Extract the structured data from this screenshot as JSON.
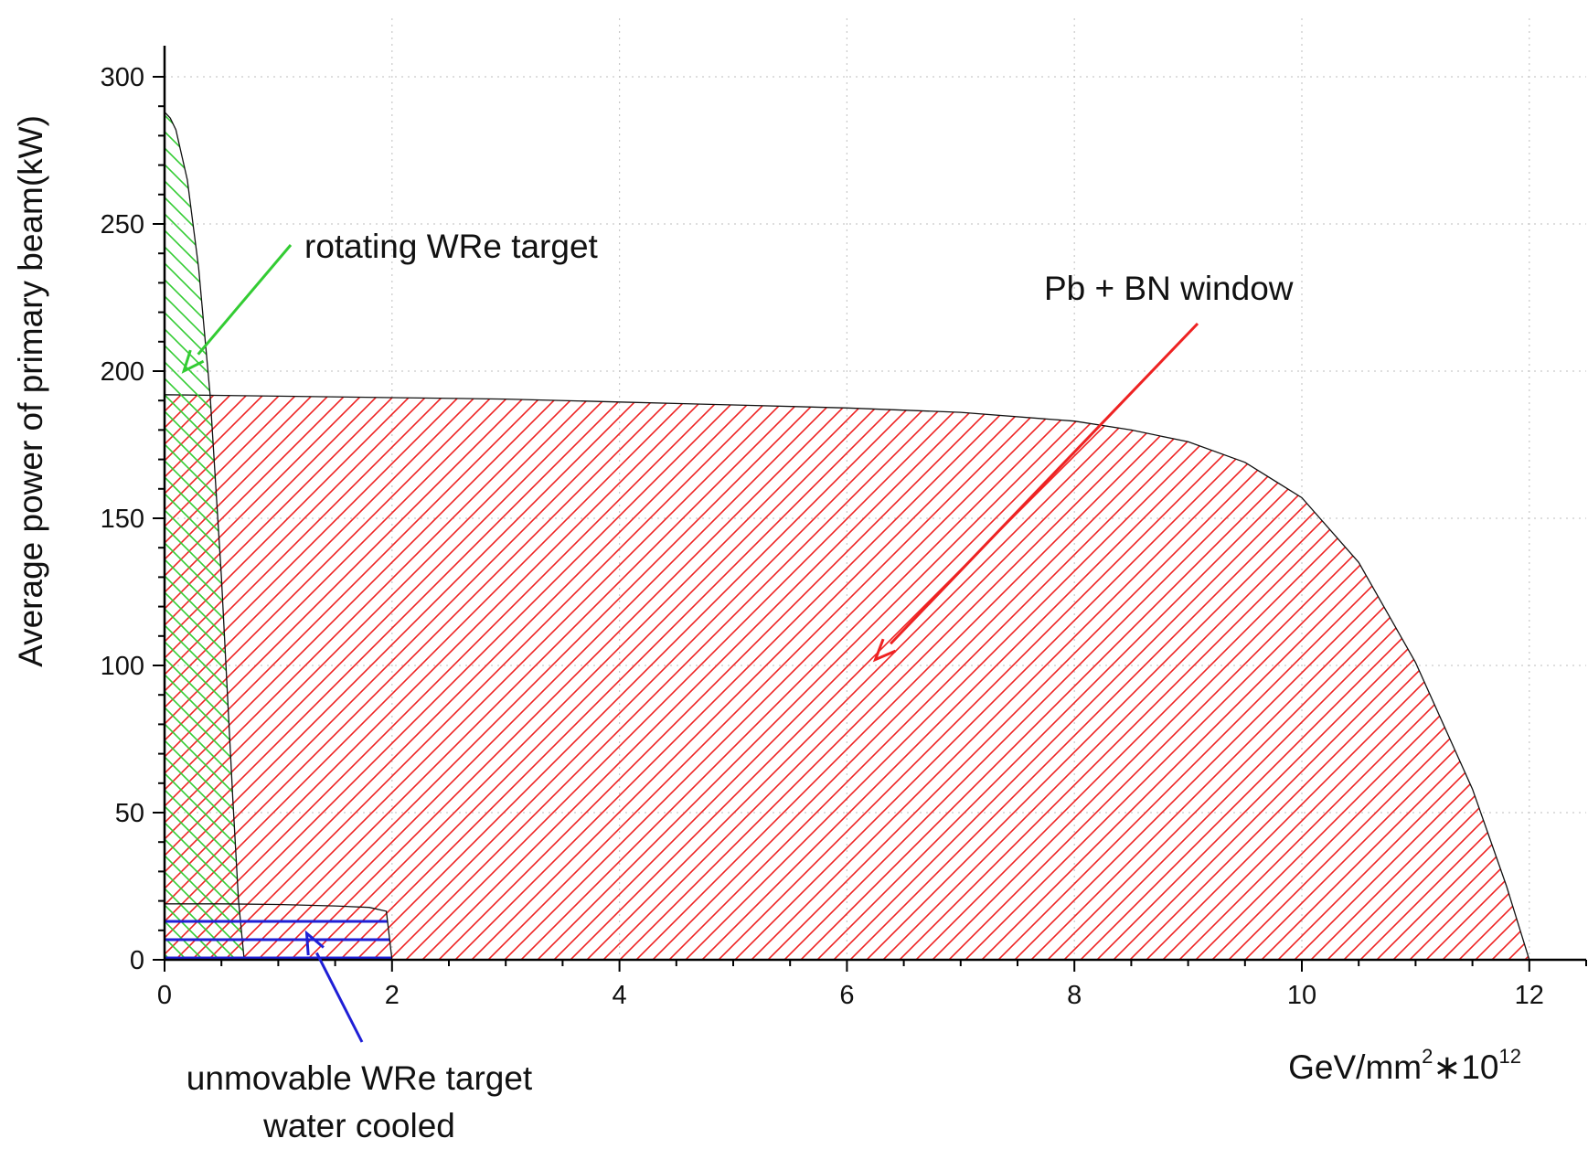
{
  "chart_data": {
    "type": "area",
    "title": "",
    "xlabel_parts": {
      "base": "GeV/mm",
      "sup1": "2",
      "mid": "∗10",
      "sup2": "12"
    },
    "ylabel": "Average power of primary beam(kW)",
    "xlim": [
      0,
      12.5
    ],
    "ylim": [
      0,
      300
    ],
    "xticks": [
      0,
      2,
      4,
      6,
      8,
      10,
      12
    ],
    "yticks": [
      0,
      50,
      100,
      150,
      200,
      250,
      300
    ],
    "grid": true,
    "series": [
      {
        "name": "Pb + BN window",
        "color": "#ee2222",
        "hatch": "diagonal",
        "x": [
          0,
          1,
          2,
          3,
          4,
          5,
          6,
          7,
          8,
          8.5,
          9,
          9.5,
          10,
          10.5,
          11,
          11.5,
          11.8,
          12
        ],
        "y": [
          192,
          191.5,
          191,
          190.5,
          189.5,
          188.5,
          187.5,
          186,
          183,
          180,
          176,
          169,
          157,
          135,
          101,
          58,
          25,
          0
        ]
      },
      {
        "name": "rotating WRe target",
        "color": "#33cc33",
        "hatch": "diagonal-reverse",
        "x": [
          0,
          0.05,
          0.1,
          0.2,
          0.3,
          0.4,
          0.5,
          0.6,
          0.65,
          0.7
        ],
        "y": [
          288,
          286,
          282,
          265,
          235,
          192,
          130,
          55,
          20,
          0
        ]
      },
      {
        "name": "unmovable WRe target water cooled",
        "color": "#1f1fd6",
        "hatch": "horizontal",
        "x": [
          0,
          0.5,
          1.0,
          1.5,
          1.8,
          1.95,
          2.0
        ],
        "y": [
          19,
          19,
          18.8,
          18.3,
          17.8,
          16.5,
          0
        ]
      }
    ],
    "annotations": [
      {
        "text": "rotating WRe target",
        "color": "#33cc33",
        "target": [
          0.17,
          200
        ]
      },
      {
        "text": "Pb + BN window",
        "color": "#ee2222",
        "target": [
          6.25,
          102
        ]
      },
      {
        "text": "unmovable WRe target",
        "text2": "water cooled",
        "color": "#1f1fd6",
        "target": [
          1.25,
          9
        ]
      }
    ]
  }
}
